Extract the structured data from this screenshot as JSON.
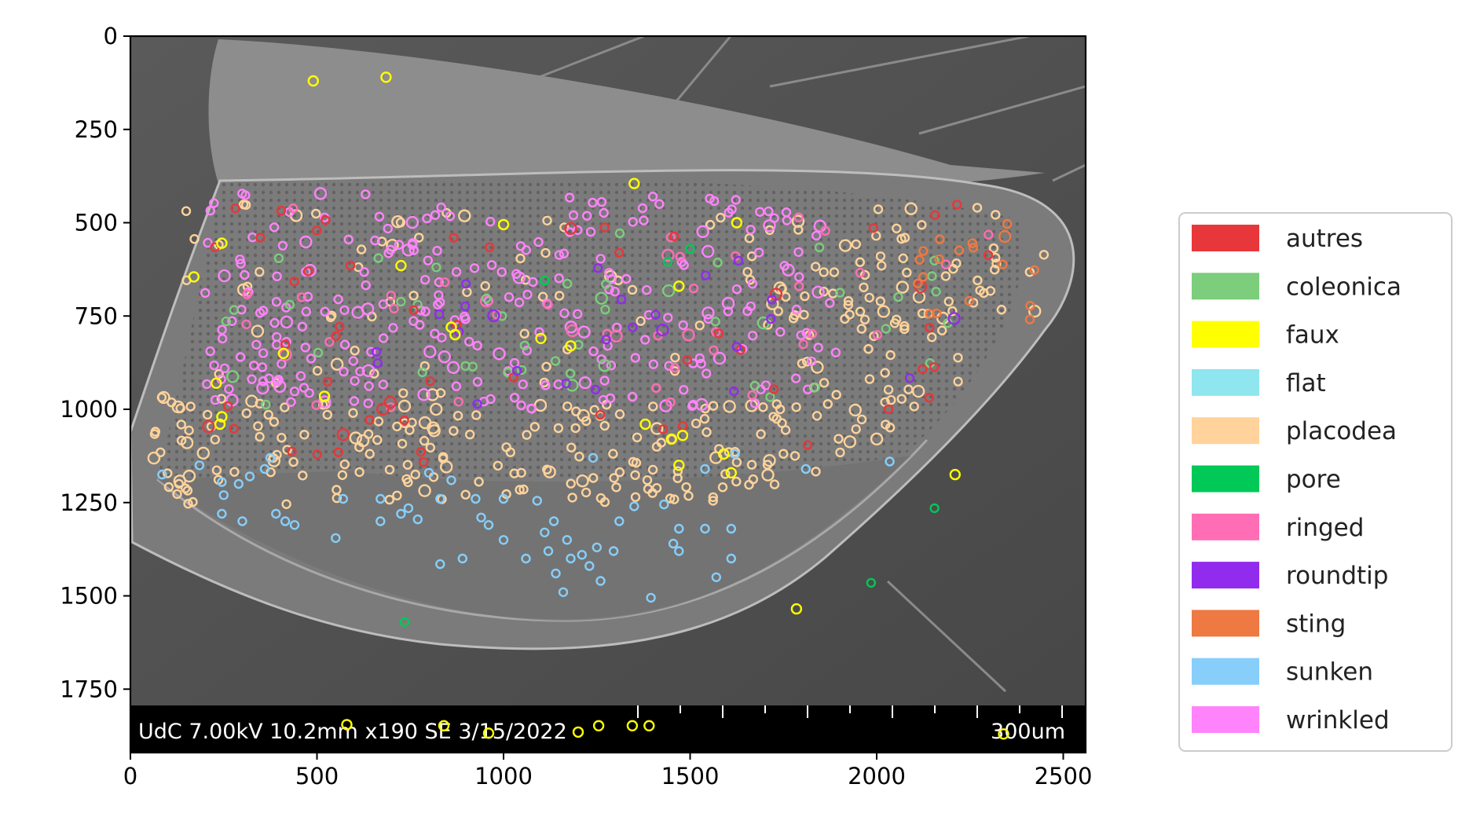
{
  "chart_data": {
    "type": "scatter",
    "title": "",
    "xlabel": "",
    "ylabel": "",
    "xlim": [
      0,
      2560
    ],
    "ylim": [
      1920,
      0
    ],
    "y_inverted": true,
    "x_ticks": [
      0,
      500,
      1000,
      1500,
      2000,
      2500
    ],
    "y_ticks": [
      0,
      250,
      500,
      750,
      1000,
      1250,
      1500,
      1750
    ],
    "grid": false,
    "legend_position": "right",
    "background_image": "SEM micrograph of antennal segment (grayscale)",
    "image_caption": "UdC 7.00kV 10.2mm x190 SE  3/15/2022",
    "scale_bar_label": "300um",
    "series": [
      {
        "name": "autres",
        "color": "#e8373a"
      },
      {
        "name": "coleonica",
        "color": "#7ccd7c"
      },
      {
        "name": "faux",
        "color": "#ffff00"
      },
      {
        "name": "flat",
        "color": "#8fe6ee"
      },
      {
        "name": "placodea",
        "color": "#ffd39b"
      },
      {
        "name": "pore",
        "color": "#00c957"
      },
      {
        "name": "ringed",
        "color": "#ff6eb4"
      },
      {
        "name": "roundtip",
        "color": "#912cee"
      },
      {
        "name": "sting",
        "color": "#ee7942"
      },
      {
        "name": "sunken",
        "color": "#87cefa"
      },
      {
        "name": "wrinkled",
        "color": "#ff83fa"
      }
    ],
    "regions": {
      "wrinkled": [
        [
          200,
          420,
          1900,
          1000,
          260
        ]
      ],
      "placodea": [
        [
          50,
          450,
          2450,
          1260,
          360
        ]
      ],
      "ringed": [
        [
          300,
          450,
          2300,
          1000,
          40
        ]
      ],
      "coleonica": [
        [
          250,
          520,
          2200,
          1000,
          45
        ]
      ],
      "autres": [
        [
          150,
          450,
          2350,
          1150,
          55
        ]
      ],
      "roundtip": [
        [
          600,
          600,
          2300,
          1000,
          25
        ]
      ],
      "sting": [
        [
          2100,
          480,
          2450,
          760,
          18
        ]
      ]
    },
    "points": {
      "faux": [
        [
          490,
          120
        ],
        [
          685,
          110
        ],
        [
          245,
          555
        ],
        [
          170,
          645
        ],
        [
          240,
          1040
        ],
        [
          245,
          1020
        ],
        [
          725,
          615
        ],
        [
          1000,
          505
        ],
        [
          1350,
          395
        ],
        [
          2210,
          1175
        ],
        [
          1785,
          1535
        ],
        [
          2340,
          1870
        ],
        [
          580,
          1845
        ],
        [
          840,
          1848
        ],
        [
          960,
          1868
        ],
        [
          1200,
          1865
        ],
        [
          1255,
          1848
        ],
        [
          1345,
          1848
        ],
        [
          1390,
          1848
        ],
        [
          1590,
          1120
        ],
        [
          1610,
          1170
        ],
        [
          1450,
          1080
        ],
        [
          1480,
          1070
        ],
        [
          1625,
          500
        ],
        [
          1470,
          670
        ],
        [
          860,
          780
        ],
        [
          870,
          800
        ],
        [
          1180,
          830
        ],
        [
          1100,
          810
        ],
        [
          520,
          965
        ],
        [
          230,
          930
        ],
        [
          410,
          850
        ],
        [
          1380,
          1040
        ],
        [
          1470,
          1150
        ]
      ],
      "pore": [
        [
          2155,
          1265
        ],
        [
          1985,
          1465
        ],
        [
          735,
          1570
        ],
        [
          1500,
          570
        ],
        [
          1110,
          655
        ],
        [
          1440,
          605
        ]
      ],
      "sunken": [
        [
          85,
          1175
        ],
        [
          185,
          1150
        ],
        [
          245,
          1195
        ],
        [
          250,
          1230
        ],
        [
          290,
          1200
        ],
        [
          320,
          1180
        ],
        [
          360,
          1160
        ],
        [
          375,
          1130
        ],
        [
          300,
          1300
        ],
        [
          245,
          1280
        ],
        [
          390,
          1280
        ],
        [
          415,
          1300
        ],
        [
          440,
          1310
        ],
        [
          550,
          1345
        ],
        [
          570,
          1240
        ],
        [
          670,
          1240
        ],
        [
          670,
          1300
        ],
        [
          725,
          1280
        ],
        [
          745,
          1265
        ],
        [
          770,
          1295
        ],
        [
          830,
          1240
        ],
        [
          830,
          1415
        ],
        [
          890,
          1400
        ],
        [
          925,
          1240
        ],
        [
          1000,
          1240
        ],
        [
          940,
          1290
        ],
        [
          960,
          1310
        ],
        [
          1000,
          1350
        ],
        [
          1090,
          1245
        ],
        [
          1110,
          1330
        ],
        [
          1120,
          1380
        ],
        [
          1140,
          1440
        ],
        [
          1135,
          1300
        ],
        [
          1170,
          1350
        ],
        [
          1180,
          1400
        ],
        [
          1210,
          1390
        ],
        [
          1230,
          1420
        ],
        [
          1250,
          1370
        ],
        [
          1295,
          1380
        ],
        [
          1260,
          1460
        ],
        [
          1310,
          1300
        ],
        [
          1350,
          1260
        ],
        [
          1395,
          1505
        ],
        [
          1430,
          1255
        ],
        [
          1455,
          1360
        ],
        [
          1470,
          1380
        ],
        [
          1470,
          1320
        ],
        [
          1540,
          1320
        ],
        [
          1610,
          1320
        ],
        [
          1610,
          1400
        ],
        [
          1570,
          1450
        ],
        [
          1540,
          1160
        ],
        [
          1620,
          1120
        ],
        [
          1810,
          1160
        ],
        [
          2035,
          1140
        ],
        [
          1160,
          1490
        ],
        [
          1060,
          1400
        ],
        [
          800,
          1170
        ],
        [
          860,
          1190
        ],
        [
          1240,
          1130
        ]
      ]
    }
  }
}
